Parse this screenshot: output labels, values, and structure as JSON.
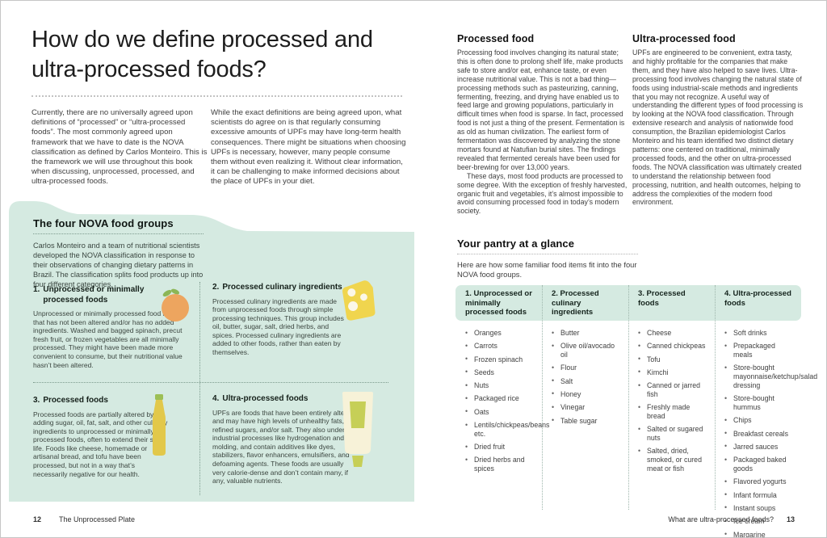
{
  "colors": {
    "mint": "#d5eae1",
    "orange": "#eda55f",
    "leaf": "#8cb656",
    "cheese": "#f0d54e",
    "cheese_hole": "#fbf7e8",
    "bottle": "#e2c84a",
    "bottle_cap": "#9cbf55",
    "tube": "#f7f2d8",
    "tube_accent": "#c6cf57"
  },
  "page_left": {
    "title": "How do we define processed and ultra-processed foods?",
    "intro_col1": "Currently, there are no universally agreed upon definitions of “processed” or “ultra-processed foods”. The most commonly agreed upon framework that we have to date is the NOVA classification as defined by Carlos Monteiro. This is the framework we will use throughout this book when discussing, unprocessed, processed, and ultra-processed foods.",
    "intro_col2": "While the exact definitions are being agreed upon, what scientists do agree on is that regularly consuming excessive amounts of UPFs may have long-term health consequences. There might be situations when choosing UPFs is necessary, however, many people consume them without even realizing it. Without clear information, it can be challenging to make informed decisions about the place of UPFs in your diet.",
    "nova": {
      "heading": "The four NOVA food groups",
      "intro": "Carlos Monteiro and a team of nutritional scientists developed the NOVA classification in response to their observations of changing dietary patterns in Brazil. The classification splits food products up into four different categories.",
      "groups": [
        {
          "num": "1.",
          "title": "Unprocessed or minimally processed foods",
          "icon": "orange-icon",
          "body": "Unprocessed or minimally processed food is food that has not been altered and/or has no added ingredients. Washed and bagged spinach, precut fresh fruit, or frozen vegetables are all minimally processed. They might have been made more convenient to consume, but their nutritional value hasn’t been altered."
        },
        {
          "num": "2.",
          "title": "Processed culinary ingredients",
          "icon": "cheese-icon",
          "body": "Processed culinary ingredients are made from unprocessed foods through simple processing techniques. This group includes oil, butter, sugar, salt, dried herbs, and spices. Processed culinary ingredients are added to other foods, rather than eaten by themselves."
        },
        {
          "num": "3.",
          "title": "Processed foods",
          "icon": "oil-bottle-icon",
          "body": "Processed foods are partially altered by adding sugar, oil, fat, salt, and other culinary ingredients to unprocessed or minimally processed foods, often to extend their shelf life. Foods like cheese, homemade or artisanal bread, and tofu have been processed, but not in a way that’s necessarily negative for our health."
        },
        {
          "num": "4.",
          "title": "Ultra-processed foods",
          "icon": "tube-icon",
          "body": "UPFs are foods that have been entirely altered and may have high levels of unhealthy fats, refined sugars, and/or salt. They also undergo industrial processes like hydrogenation and molding, and contain additives like dyes, stabilizers, flavor enhancers, emulsifiers, and defoaming agents. These foods are usually very calorie-dense and don’t contain many, if any, valuable nutrients."
        }
      ]
    },
    "footer": {
      "page_number": "12",
      "book_title": "The Unprocessed Plate"
    }
  },
  "page_right": {
    "processed": {
      "heading": "Processed food",
      "paragraphs": [
        "Processing food involves changing its natural state; this is often done to prolong shelf life, make products safe to store and/or eat, enhance taste, or even increase nutritional value. This is not a bad thing—processing methods such as pasteurizing, canning, fermenting, freezing, and drying have enabled us to feed large and growing populations, particularly in difficult times when food is sparse. In fact, processed food is not just a thing of the present. Fermentation is as old as human civilization. The earliest form of fermentation was discovered by analyzing the stone mortars found at Natufian burial sites. The findings revealed that fermented cereals have been used for beer-brewing for over 13,000 years.",
        "These days, most food products are processed to some degree. With the exception of freshly harvested, organic fruit and vegetables, it’s almost impossible to avoid consuming processed food in today’s modern society."
      ]
    },
    "ultra": {
      "heading": "Ultra-processed food",
      "paragraphs": [
        "UPFs are engineered to be convenient, extra tasty, and highly profitable for the companies that make them, and they have also helped to save lives. Ultra-processing food involves changing the natural state of foods using industrial-scale methods and ingredients that you may not recognize. A useful way of understanding the different types of food processing is by looking at the NOVA food classification. Through extensive research and analysis of nationwide food consumption, the Brazilian epidemiologist Carlos Monteiro and his team identified two distinct dietary patterns: one centered on traditional, minimally processed foods, and the other on ultra-processed foods. The NOVA classification was ultimately created to understand the relationship between food processing, nutrition, and health outcomes, helping to address the complexities of the modern food environment."
      ]
    },
    "pantry": {
      "heading": "Your pantry at a glance",
      "intro": "Here are how some familiar food items fit into the four NOVA food groups.",
      "columns": [
        {
          "header": "1. Unprocessed or minimally processed foods",
          "items": [
            "Oranges",
            "Carrots",
            "Frozen spinach",
            "Seeds",
            "Nuts",
            "Packaged rice",
            "Oats",
            "Lentils/chickpeas/beans etc.",
            "Dried fruit",
            "Dried herbs and spices"
          ]
        },
        {
          "header": "2. Processed culinary ingredients",
          "items": [
            "Butter",
            "Olive oil/avocado oil",
            "Flour",
            "Salt",
            "Honey",
            "Vinegar",
            "Table sugar"
          ]
        },
        {
          "header": "3. Processed foods",
          "items": [
            "Cheese",
            "Canned chickpeas",
            "Tofu",
            "Kimchi",
            "Canned or jarred fish",
            "Freshly made bread",
            "Salted or sugared nuts",
            "Salted, dried, smoked, or cured meat or fish"
          ]
        },
        {
          "header": "4. Ultra-processed foods",
          "items": [
            "Soft drinks",
            "Prepackaged meals",
            "Store-bought mayonnaise/ketchup/salad dressing",
            "Store-bought hummus",
            "Chips",
            "Breakfast cereals",
            "Jarred sauces",
            "Packaged baked goods",
            "Flavored yogurts",
            "Infant formula",
            "Instant soups",
            "Ice cream",
            "Margarine"
          ]
        }
      ]
    },
    "footer": {
      "chapter_title": "What are ultra-processed foods?",
      "page_number": "13"
    }
  }
}
